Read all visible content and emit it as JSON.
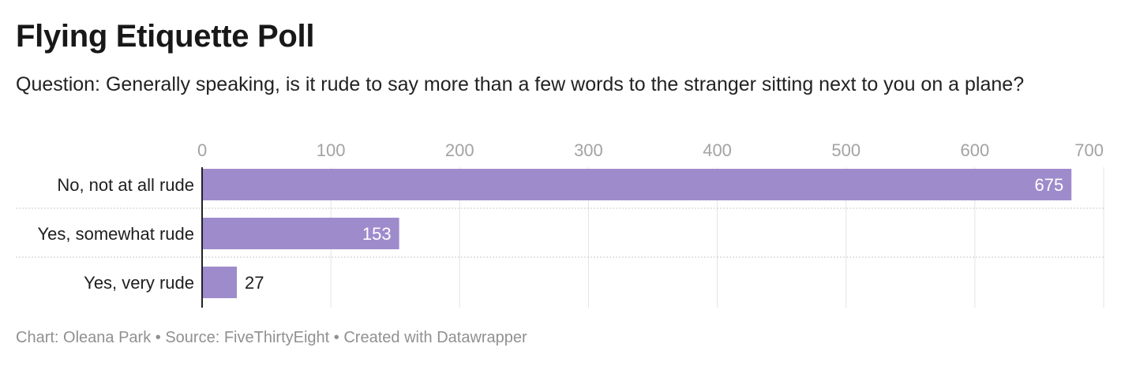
{
  "header": {
    "title": "Flying Etiquette Poll",
    "subtitle": "Question: Generally speaking, is it rude to say more than a few words to the stranger sitting next to you on a plane?"
  },
  "footer": {
    "credit_label": "Chart:",
    "credit_name": "Oleana Park",
    "separator": "•",
    "source_label": "Source:",
    "source_name": "FiveThirtyEight",
    "created_with": "Created with Datawrapper"
  },
  "chart_data": {
    "type": "bar",
    "orientation": "horizontal",
    "categories": [
      "No, not at all rude",
      "Yes, somewhat rude",
      "Yes, very rude"
    ],
    "values": [
      675,
      153,
      27
    ],
    "xlim": [
      0,
      700
    ],
    "ticks": [
      0,
      100,
      200,
      300,
      400,
      500,
      600,
      700
    ],
    "bar_color": "#9e8bcc",
    "grid": true,
    "axis_position": "top"
  }
}
